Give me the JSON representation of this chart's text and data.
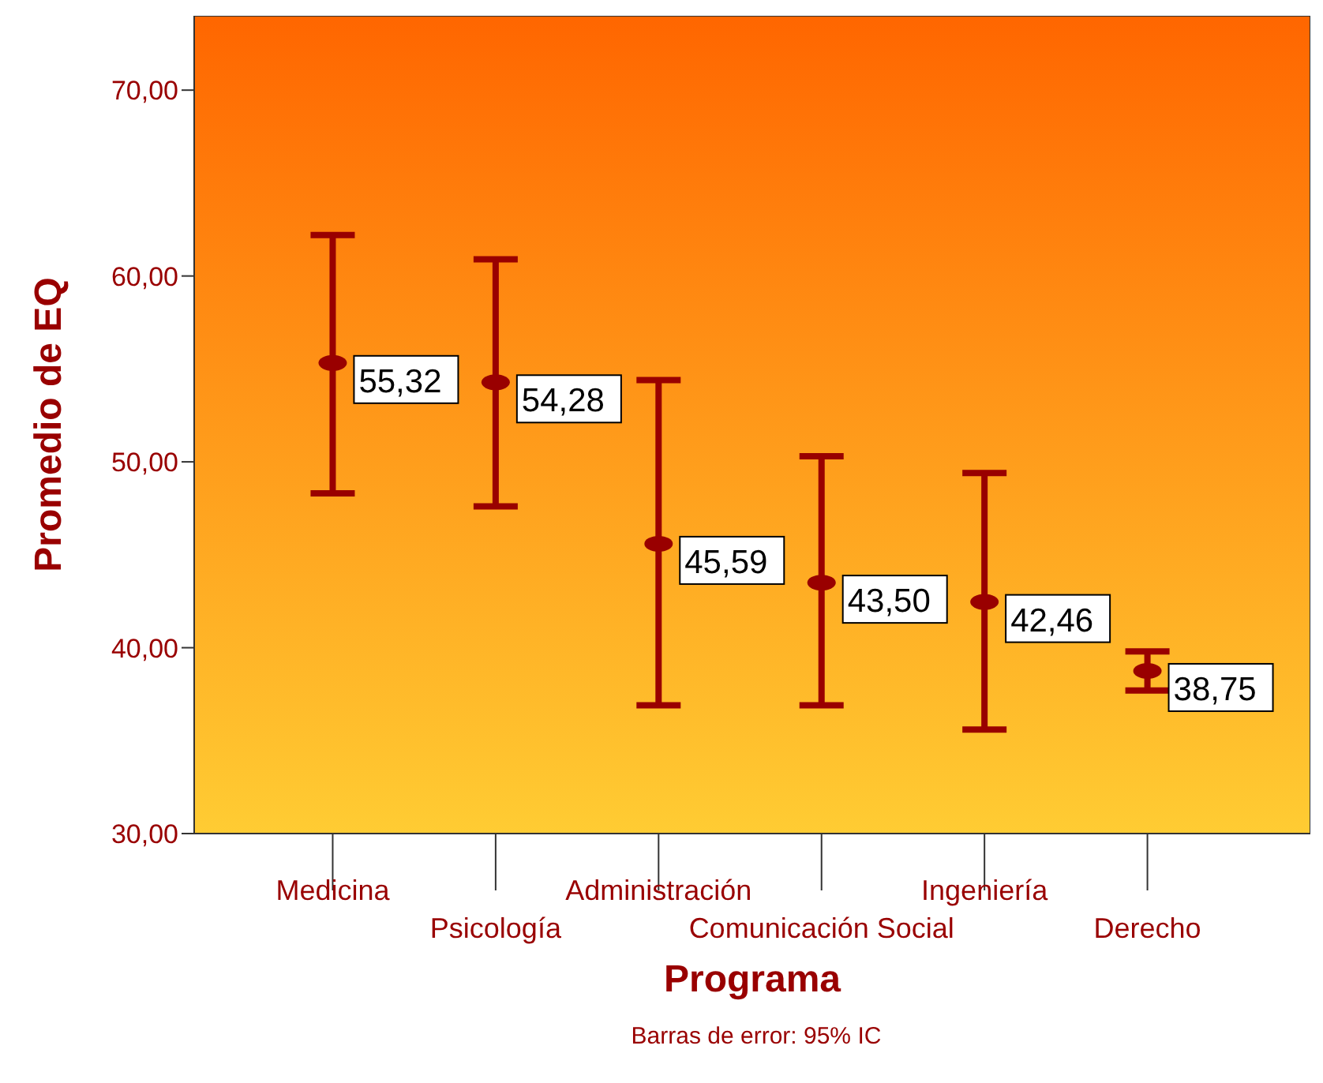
{
  "chart_data": {
    "type": "scatter",
    "xlabel": "Programa",
    "ylabel": "Promedio de EQ",
    "categories": [
      "Medicina",
      "Psicología",
      "Administración",
      "Comunicación Social",
      "Ingeniería",
      "Derecho"
    ],
    "series": [
      {
        "color": "#990000",
        "values": [
          55.32,
          54.28,
          45.59,
          43.5,
          42.46,
          38.75
        ],
        "errors": [
          [
            48.3,
            62.2
          ],
          [
            47.6,
            60.9
          ],
          [
            36.9,
            54.4
          ],
          [
            36.9,
            50.3
          ],
          [
            35.6,
            49.4
          ],
          [
            37.7,
            39.8
          ]
        ],
        "value_labels": [
          "55,32",
          "54,28",
          "45,59",
          "43,50",
          "42,46",
          "38,75"
        ]
      }
    ],
    "ylim": [
      30,
      74
    ],
    "yticks": [
      {
        "value": 30,
        "label": "30,00"
      },
      {
        "value": 40,
        "label": "40,00"
      },
      {
        "value": 50,
        "label": "50,00"
      },
      {
        "value": 60,
        "label": "60,00"
      },
      {
        "value": 70,
        "label": "70,00"
      }
    ],
    "marker": "circle",
    "grid": false,
    "legend": false,
    "annotations": [
      "Barras de error: 95% IC"
    ]
  }
}
